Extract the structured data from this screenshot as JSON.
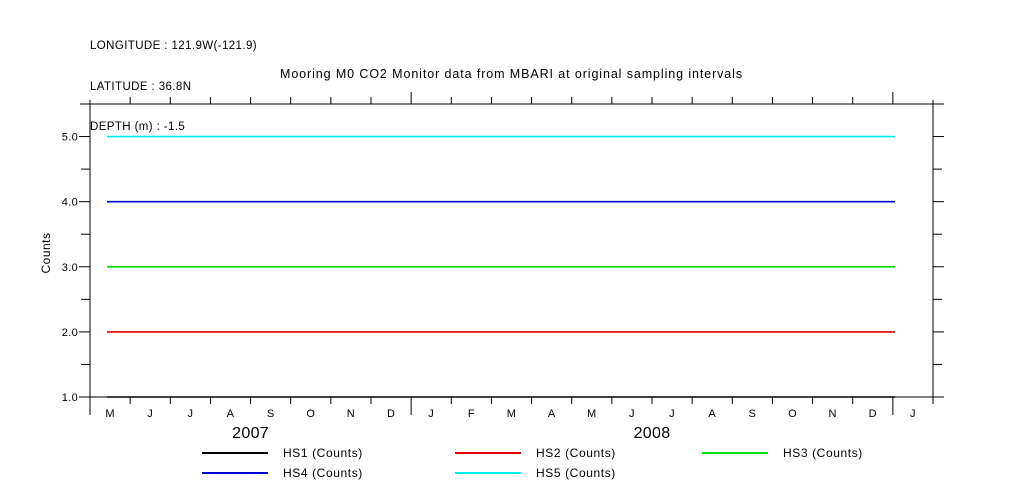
{
  "header": {
    "longitude": "LONGITUDE : 121.9W(-121.9)",
    "latitude": "LATITUDE : 36.8N",
    "depth": "DEPTH (m) : -1.5"
  },
  "chart_data": {
    "type": "line",
    "title": "Mooring M0 CO2 Monitor data from MBARI at original sampling intervals",
    "ylabel": "Counts",
    "ylim": [
      1.0,
      5.5
    ],
    "ytick_step": 0.5,
    "ytick_labels": [
      "1.0",
      "2.0",
      "3.0",
      "4.0",
      "5.0"
    ],
    "x_months": [
      "M",
      "J",
      "J",
      "A",
      "S",
      "O",
      "N",
      "D",
      "J",
      "F",
      "M",
      "A",
      "M",
      "J",
      "J",
      "A",
      "S",
      "O",
      "N",
      "D",
      "J"
    ],
    "x_year_labels": [
      "2007",
      "2008"
    ],
    "x_year_tick_indices": [
      0,
      8,
      20
    ],
    "grid": false,
    "legend_position": "bottom",
    "series": [
      {
        "name": "HS1 (Counts)",
        "color": "#000000",
        "value": 1.0
      },
      {
        "name": "HS2 (Counts)",
        "color": "#e60000",
        "value": 2.0
      },
      {
        "name": "HS3 (Counts)",
        "color": "#00dd00",
        "value": 3.0
      },
      {
        "name": "HS4 (Counts)",
        "color": "#0000cc",
        "value": 4.0
      },
      {
        "name": "HS5 (Counts)",
        "color": "#00eeee",
        "value": 5.0
      }
    ]
  },
  "legend": {
    "items": [
      {
        "label": "HS1 (Counts)",
        "color": "#000000"
      },
      {
        "label": "HS2 (Counts)",
        "color": "#e60000"
      },
      {
        "label": "HS3 (Counts)",
        "color": "#00dd00"
      },
      {
        "label": "HS4 (Counts)",
        "color": "#0000cc"
      },
      {
        "label": "HS5 (Counts)",
        "color": "#00eeee"
      }
    ]
  }
}
